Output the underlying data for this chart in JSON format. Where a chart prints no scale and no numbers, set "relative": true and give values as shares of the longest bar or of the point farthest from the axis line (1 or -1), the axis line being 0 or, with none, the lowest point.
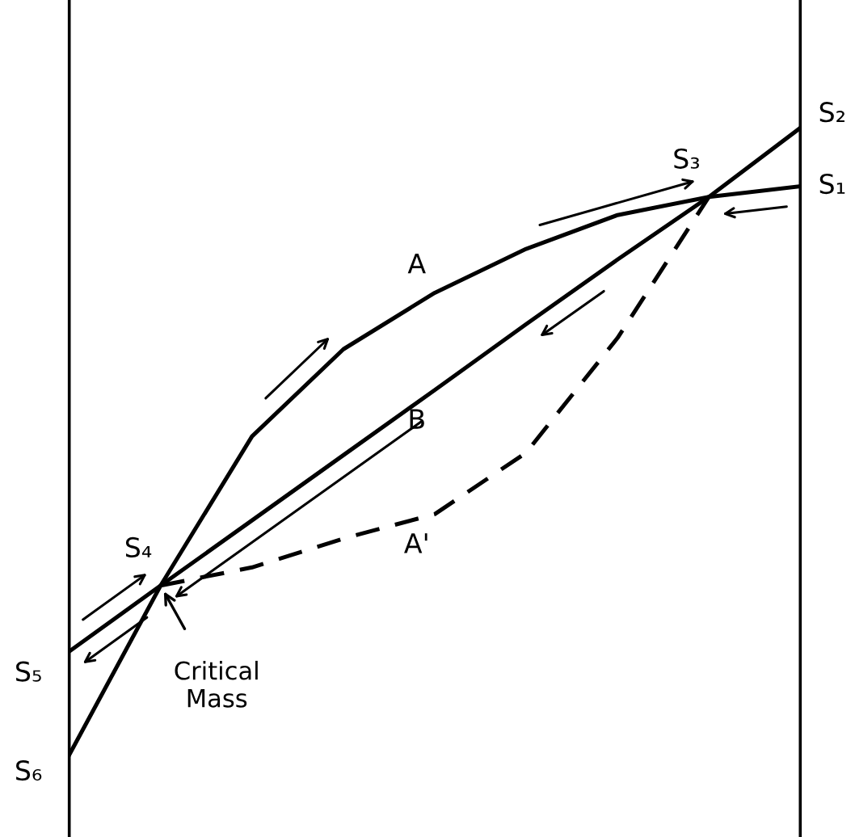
{
  "chart_data": {
    "type": "line",
    "relative": true,
    "grid": false,
    "marker": "none",
    "categories": [
      null,
      null,
      null,
      null,
      null,
      null,
      null,
      null,
      null
    ],
    "series": [
      {
        "name": "A",
        "color": "#000000",
        "line_style": "solid",
        "values": [
          0,
          0.27,
          0.508,
          0.647,
          0.737,
          0.807,
          0.861,
          0.89,
          0.907
        ]
      },
      {
        "name": "B",
        "color": "#000000",
        "line_style": "solid",
        "values": [
          0.165,
          0.27,
          0.374,
          0.478,
          0.582,
          0.687,
          0.79,
          0.89,
          1.0
        ]
      },
      {
        "name": "A'",
        "color": "#000000",
        "line_style": "dashed",
        "values": [
          null,
          0.27,
          0.299,
          0.345,
          0.384,
          0.482,
          0.665,
          0.89,
          null
        ]
      }
    ],
    "annotations": [
      "S₁",
      "S₂",
      "S₃",
      "S₄",
      "S₅",
      "S₆",
      "Critical\nMass"
    ]
  }
}
